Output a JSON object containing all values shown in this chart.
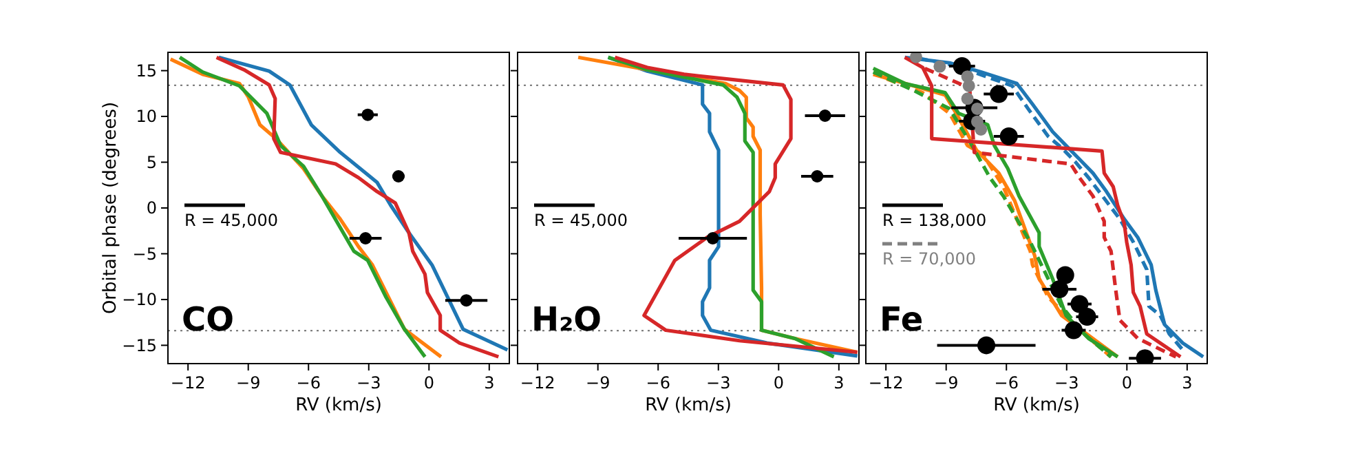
{
  "chart_data": [
    {
      "type": "line",
      "xlabel": "RV (km/s)",
      "ylabel": "Orbital phase (degrees)",
      "xlim": [
        -13,
        4
      ],
      "xticks": [
        -12,
        -9,
        -6,
        -3,
        0,
        3
      ],
      "ylim": [
        -17,
        17
      ],
      "yticks": [
        -15,
        -10,
        -5,
        0,
        5,
        10,
        15
      ],
      "legend": "left",
      "annotations": [
        "CO"
      ],
      "ref_lines": [
        {
          "axis": "y",
          "value": 13.4,
          "color": "#808080",
          "line_style": "dotted"
        },
        {
          "axis": "y",
          "value": -13.4,
          "color": "#808080",
          "line_style": "dotted"
        }
      ],
      "series": [
        {
          "color": "#1f77b4",
          "x": [
            -10.47,
            -7.96,
            -6.93,
            -5.86,
            -4.42,
            -2.59,
            -1.91,
            -1.0,
            0.15,
            1.7,
            3.91
          ],
          "values": [
            16.45,
            14.95,
            13.44,
            9.08,
            6.07,
            2.81,
            0.3,
            -2.71,
            -6.22,
            -13.25,
            -15.5
          ]
        },
        {
          "color": "#ff7f0e",
          "x": [
            -12.87,
            -11.27,
            -9.44,
            -8.99,
            -8.42,
            -7.62,
            -6.25,
            -5.33,
            -4.42,
            -3.51,
            -2.82,
            -1.22,
            0.6
          ],
          "values": [
            16.25,
            14.6,
            13.6,
            12.1,
            9.08,
            7.57,
            4.31,
            1.3,
            -1.21,
            -4.22,
            -6.22,
            -13.25,
            -16.26
          ]
        },
        {
          "color": "#2ca02c",
          "x": [
            -12.41,
            -11.27,
            -9.44,
            -8.07,
            -7.39,
            -6.25,
            -5.33,
            -3.74,
            -3.05,
            -2.14,
            -1.22,
            -0.2
          ],
          "values": [
            16.45,
            14.85,
            13.34,
            10.33,
            6.82,
            4.56,
            1.3,
            -4.72,
            -5.72,
            -9.74,
            -13.25,
            -16.26
          ]
        },
        {
          "color": "#d62728",
          "x": [
            -10.58,
            -9.21,
            -7.96,
            -7.66,
            -7.73,
            -7.39,
            -4.65,
            -3.51,
            -2.59,
            -1.68,
            -1.0,
            -0.81,
            -0.2,
            -0.08,
            0.56,
            0.56,
            1.52,
            3.46
          ],
          "values": [
            16.45,
            15.1,
            13.44,
            11.94,
            7.57,
            6.07,
            4.81,
            3.31,
            1.8,
            0.55,
            -2.71,
            -4.72,
            -7.23,
            -9.23,
            -11.74,
            -13.35,
            -14.75,
            -16.26
          ]
        },
        {
          "type": "scatter",
          "name": "R = 45,000",
          "color": "#000000",
          "marker": "circle",
          "x": [
            -3.05,
            -1.52,
            -3.16,
            1.86
          ],
          "values": [
            10.18,
            3.46,
            -3.31,
            -10.09
          ],
          "xerrors": [
            0.5,
            0.3,
            0.8,
            1.05
          ]
        }
      ]
    },
    {
      "type": "line",
      "xlabel": "RV (km/s)",
      "xlim": [
        -13,
        4
      ],
      "xticks": [
        -12,
        -9,
        -6,
        -3,
        0,
        3
      ],
      "ylim": [
        -17,
        17
      ],
      "yticks": [
        -15,
        -10,
        -5,
        0,
        5,
        10,
        15
      ],
      "tick_labels": "x",
      "legend": "left",
      "annotations": [
        "H₂O"
      ],
      "ref_lines": [
        {
          "axis": "y",
          "value": 13.4,
          "color": "#808080",
          "line_style": "dotted"
        },
        {
          "axis": "y",
          "value": -13.4,
          "color": "#808080",
          "line_style": "dotted"
        }
      ],
      "series": [
        {
          "color": "#1f77b4",
          "x": [
            -8.49,
            -6.54,
            -3.79,
            -3.79,
            -3.44,
            -3.44,
            -2.99,
            -2.99,
            -3.44,
            -3.44,
            -3.79,
            -3.79,
            -3.38,
            -0.58,
            3.92
          ],
          "values": [
            16.45,
            14.95,
            13.44,
            11.34,
            10.33,
            8.33,
            6.32,
            -4.22,
            -5.72,
            -8.73,
            -10.24,
            -11.74,
            -13.35,
            -14.75,
            -16.16
          ]
        },
        {
          "color": "#ff7f0e",
          "x": [
            -9.98,
            -6.54,
            -2.64,
            -1.95,
            -1.61,
            -1.61,
            -1.27,
            -1.27,
            -0.92,
            -0.92,
            -0.85,
            -0.85,
            0.8,
            3.92
          ],
          "values": [
            16.45,
            15.1,
            13.6,
            12.84,
            12.09,
            9.83,
            8.83,
            7.82,
            6.32,
            -0.7,
            -8.73,
            -13.35,
            -14.25,
            -15.76
          ]
        },
        {
          "color": "#2ca02c",
          "x": [
            -8.49,
            -6.54,
            -2.76,
            -2.07,
            -1.68,
            -1.68,
            -1.27,
            -1.27,
            -0.85,
            -0.85,
            0.8,
            2.75
          ],
          "values": [
            16.45,
            15.1,
            13.44,
            12.09,
            10.33,
            7.32,
            6.07,
            -8.98,
            -10.24,
            -13.35,
            -14.25,
            -16.26
          ]
        },
        {
          "color": "#d62728",
          "x": [
            -8.15,
            -6.54,
            -4.71,
            0.22,
            0.61,
            0.61,
            -0.17,
            -0.17,
            -0.46,
            -1.95,
            -3.56,
            -5.17,
            -6.7,
            -5.62,
            -1.95,
            3.92
          ],
          "values": [
            16.45,
            15.35,
            14.6,
            13.44,
            11.84,
            7.57,
            4.81,
            3.31,
            1.8,
            -1.46,
            -3.21,
            -5.72,
            -11.74,
            -13.35,
            -14.5,
            -15.76
          ]
        },
        {
          "type": "scatter",
          "name": "R = 45,000",
          "color": "#000000",
          "marker": "circle",
          "x": [
            2.31,
            1.92,
            -3.28
          ],
          "values": [
            10.08,
            3.46,
            -3.31
          ],
          "xerrors": [
            1.0,
            0.8,
            1.7
          ]
        }
      ]
    },
    {
      "type": "line",
      "xlabel": "RV (km/s)",
      "xlim": [
        -13,
        4
      ],
      "xticks": [
        -12,
        -9,
        -6,
        -3,
        0,
        3
      ],
      "ylim": [
        -17,
        17
      ],
      "yticks": [
        -15,
        -10,
        -5,
        0,
        5,
        10,
        15
      ],
      "tick_labels": "x",
      "legend": "left",
      "annotations": [
        "Fe"
      ],
      "ref_lines": [
        {
          "axis": "y",
          "value": 13.4,
          "color": "#808080",
          "line_style": "dotted"
        },
        {
          "axis": "y",
          "value": -13.4,
          "color": "#808080",
          "line_style": "dotted"
        }
      ],
      "series": [
        {
          "color": "#1f77b4",
          "x": [
            -11.06,
            -8.83,
            -7.27,
            -5.48,
            -4.7,
            -3.7,
            -3.03,
            -2.36,
            -1.69,
            -1.02,
            -0.13,
            0.54,
            1.21,
            1.44,
            1.88,
            2.78,
            3.8
          ],
          "values": [
            16.45,
            15.85,
            14.85,
            13.6,
            11.34,
            8.33,
            6.82,
            5.32,
            3.81,
            1.8,
            -1.21,
            -3.21,
            -6.22,
            -8.98,
            -12.75,
            -14.75,
            -16.26
          ]
        },
        {
          "color": "#1f77b4",
          "line_style": "dashed",
          "x": [
            -10.39,
            -8.61,
            -5.71,
            -4.92,
            -3.92,
            -3.25,
            -2.58,
            -1.91,
            -1.13,
            -0.35,
            0.32,
            0.99,
            1.1,
            1.66,
            2.11,
            2.78
          ],
          "values": [
            16.35,
            15.6,
            13.34,
            10.84,
            7.82,
            6.57,
            5.07,
            3.31,
            1.05,
            -1.21,
            -3.72,
            -6.73,
            -10.74,
            -11.74,
            -13.75,
            -15.5
          ]
        },
        {
          "color": "#ff7f0e",
          "x": [
            -12.63,
            -10.62,
            -9.05,
            -8.5,
            -7.49,
            -6.38,
            -5.59,
            -4.59,
            -4.37,
            -3.25,
            -0.46
          ],
          "values": [
            14.6,
            13.34,
            12.34,
            10.33,
            6.32,
            3.81,
            0.8,
            -5.22,
            -7.73,
            -11.74,
            -16.26
          ]
        },
        {
          "color": "#ff7f0e",
          "line_style": "dashed",
          "x": [
            -11.96,
            -10.17,
            -8.83,
            -7.94,
            -7.16,
            -6.15,
            -4.81,
            -4.7,
            -3.92,
            -2.13,
            -0.79
          ],
          "values": [
            14.1,
            12.59,
            10.33,
            6.82,
            5.82,
            2.31,
            -4.72,
            -6.22,
            -9.74,
            -13.75,
            -16.26
          ]
        },
        {
          "color": "#2ca02c",
          "x": [
            -12.63,
            -11.06,
            -9.05,
            -8.38,
            -6.93,
            -6.6,
            -5.93,
            -5.37,
            -4.37,
            -4.37,
            -3.7,
            -3.03,
            -1.91,
            -0.46
          ],
          "values": [
            15.25,
            13.6,
            12.59,
            10.33,
            9.08,
            6.82,
            4.31,
            1.3,
            -2.71,
            -4.22,
            -7.73,
            -11.74,
            -14.25,
            -16.26
          ]
        },
        {
          "color": "#2ca02c",
          "line_style": "dashed",
          "x": [
            -12.63,
            -10.62,
            -8.83,
            -7.71,
            -6.82,
            -6.15,
            -4.81,
            -3.92,
            -3.25,
            -2.13,
            -0.79
          ],
          "values": [
            14.85,
            12.84,
            10.84,
            6.82,
            3.31,
            1.3,
            -3.72,
            -7.73,
            -10.74,
            -13.75,
            -16.26
          ]
        },
        {
          "color": "#d62728",
          "x": [
            -11.06,
            -10.17,
            -9.72,
            -9.72,
            -1.24,
            -1.13,
            -0.68,
            -0.46,
            -0.13,
            -0.01,
            0.21,
            0.32,
            0.66,
            0.99,
            2.67
          ],
          "values": [
            16.45,
            15.35,
            13.34,
            7.57,
            6.22,
            3.81,
            2.31,
            0.3,
            -1.71,
            -3.72,
            -6.22,
            -9.23,
            -10.74,
            -13.75,
            -16.26
          ]
        },
        {
          "color": "#d62728",
          "line_style": "dashed",
          "x": [
            -10.06,
            -7.83,
            -7.6,
            -2.8,
            -2.36,
            -1.69,
            -1.13,
            -1.13,
            -0.79,
            -0.57,
            -0.35,
            0.54,
            2.44
          ],
          "values": [
            15.25,
            13.09,
            6.07,
            4.81,
            3.31,
            1.3,
            -1.46,
            -3.21,
            -4.72,
            -8.73,
            -12.25,
            -14.25,
            -16.26
          ]
        },
        {
          "type": "scatter",
          "name": "R = 138,000",
          "color": "#000000",
          "marker": "circle",
          "x": [
            -8.21,
            -6.38,
            -7.6,
            -7.71,
            -5.88,
            -3.07,
            -3.36,
            -2.36,
            -1.98,
            -2.65,
            -7.0,
            0.9
          ],
          "values": [
            15.5,
            12.44,
            10.94,
            9.48,
            7.82,
            -7.33,
            -8.88,
            -10.49,
            -11.89,
            -13.35,
            -15.0,
            -16.41
          ],
          "xerrors": [
            0.65,
            0.75,
            1.15,
            0.65,
            0.75,
            0.35,
            0.85,
            0.6,
            0.55,
            0.6,
            2.45,
            0.8
          ]
        },
        {
          "type": "scatter",
          "name": "R = 70,000",
          "color": "#808080",
          "marker": "circle",
          "line_style": "dashed",
          "x": [
            -10.5,
            -9.32,
            -7.94,
            -7.87,
            -7.94,
            -7.45,
            -7.45,
            -7.27
          ],
          "values": [
            16.5,
            15.45,
            14.35,
            13.34,
            11.94,
            10.84,
            9.43,
            8.58
          ]
        }
      ]
    }
  ]
}
